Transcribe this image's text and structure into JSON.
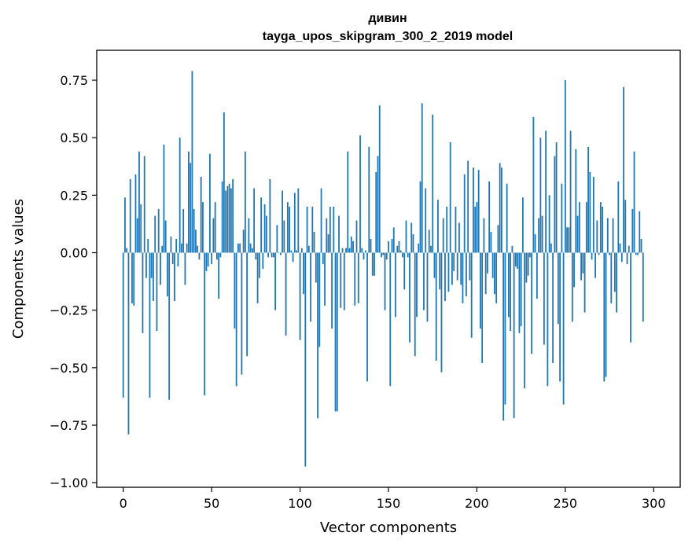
{
  "chart_data": {
    "type": "bar",
    "title": "дивин",
    "subtitle": "tayga_upos_skipgram_300_2_2019 model",
    "xlabel": "Vector components",
    "ylabel": "Components values",
    "xlim": [
      -15,
      315
    ],
    "ylim": [
      -1.02,
      0.88
    ],
    "xticks": [
      0,
      50,
      100,
      150,
      200,
      250,
      300
    ],
    "xtick_labels": [
      "0",
      "50",
      "100",
      "150",
      "200",
      "250",
      "300"
    ],
    "yticks": [
      0.75,
      0.5,
      0.25,
      0.0,
      -0.25,
      -0.5,
      -0.75,
      -1.0
    ],
    "ytick_labels": [
      "0.75",
      "0.50",
      "0.25",
      "0.00",
      "−0.25",
      "−0.50",
      "−0.75",
      "−1.00"
    ],
    "bar_color": "#1f77b4",
    "grid": false,
    "values": [
      -0.63,
      0.24,
      0.02,
      -0.79,
      0.32,
      -0.22,
      -0.23,
      0.34,
      0.15,
      0.44,
      0.21,
      -0.35,
      0.42,
      -0.11,
      0.06,
      -0.63,
      -0.11,
      -0.21,
      0.16,
      -0.34,
      0.19,
      -0.14,
      0.03,
      0.47,
      0.14,
      -0.19,
      -0.64,
      0.07,
      -0.05,
      -0.21,
      0.06,
      -0.06,
      0.5,
      0.04,
      0.19,
      -0.14,
      0.04,
      0.44,
      0.39,
      0.79,
      0.19,
      0.1,
      0.03,
      -0.03,
      0.33,
      0.22,
      -0.62,
      -0.08,
      -0.06,
      0.43,
      -0.05,
      0.15,
      0.22,
      -0.03,
      -0.2,
      -0.02,
      0.31,
      0.61,
      0.27,
      0.29,
      0.3,
      0.28,
      0.32,
      -0.33,
      -0.58,
      0.04,
      0.04,
      -0.53,
      0.1,
      0.44,
      -0.45,
      0.15,
      0.04,
      0.02,
      0.28,
      -0.03,
      -0.22,
      -0.11,
      0.24,
      -0.07,
      0.21,
      0.16,
      -0.02,
      0.32,
      -0.02,
      -0.02,
      -0.25,
      0.12,
      0.0,
      -0.01,
      0.27,
      0.14,
      -0.36,
      0.22,
      0.2,
      0.01,
      -0.04,
      0.26,
      0.01,
      0.28,
      -0.38,
      0.02,
      -0.18,
      -0.93,
      0.2,
      0.03,
      -0.3,
      0.2,
      0.09,
      -0.13,
      -0.72,
      -0.41,
      0.28,
      -0.05,
      -0.23,
      0.15,
      0.08,
      0.2,
      -0.33,
      0.2,
      -0.69,
      -0.69,
      0.16,
      -0.24,
      0.02,
      -0.25,
      0.02,
      0.44,
      0.02,
      0.07,
      0.05,
      -0.23,
      0.14,
      -0.22,
      0.51,
      0.02,
      -0.03,
      0.01,
      -0.56,
      0.46,
      0.06,
      -0.1,
      -0.1,
      0.35,
      0.42,
      0.64,
      -0.02,
      -0.01,
      -0.25,
      -0.03,
      0.05,
      -0.58,
      0.06,
      0.11,
      -0.28,
      0.03,
      0.05,
      0.01,
      -0.02,
      -0.16,
      0.14,
      -0.02,
      -0.39,
      0.13,
      0.08,
      -0.45,
      -0.28,
      0.04,
      0.31,
      0.65,
      -0.25,
      0.28,
      -0.3,
      0.1,
      0.03,
      0.6,
      -0.11,
      -0.47,
      0.23,
      -0.16,
      -0.52,
      0.15,
      -0.21,
      0.2,
      -0.17,
      0.48,
      -0.14,
      -0.08,
      0.2,
      -0.12,
      0.13,
      -0.14,
      -0.22,
      0.34,
      -0.19,
      0.4,
      -0.12,
      -0.37,
      0.37,
      0.2,
      0.22,
      0.36,
      -0.33,
      -0.48,
      0.15,
      -0.18,
      -0.09,
      0.31,
      0.09,
      -0.11,
      -0.18,
      -0.22,
      0.12,
      0.39,
      0.37,
      -0.73,
      -0.66,
      0.3,
      -0.28,
      -0.34,
      0.03,
      -0.72,
      -0.06,
      -0.07,
      -0.35,
      -0.32,
      0.24,
      -0.59,
      -0.13,
      -0.1,
      -0.02,
      -0.44,
      0.59,
      0.08,
      -0.2,
      0.15,
      0.5,
      0.16,
      -0.4,
      0.53,
      -0.58,
      0.25,
      0.04,
      -0.48,
      0.42,
      0.48,
      -0.31,
      -0.56,
      0.3,
      -0.66,
      0.75,
      0.11,
      0.11,
      0.53,
      -0.3,
      -0.15,
      0.45,
      0.16,
      0.22,
      -0.12,
      -0.09,
      -0.26,
      0.22,
      0.46,
      0.35,
      -0.03,
      0.33,
      -0.11,
      0.14,
      -0.01,
      0.22,
      0.2,
      -0.56,
      -0.54,
      0.15,
      -0.01,
      -0.22,
      0.15,
      -0.17,
      -0.26,
      0.31,
      0.04,
      -0.04,
      0.72,
      0.23,
      -0.05,
      0.03,
      -0.39,
      0.19,
      0.44,
      -0.01,
      -0.01,
      0.18,
      0.06,
      -0.3
    ]
  }
}
